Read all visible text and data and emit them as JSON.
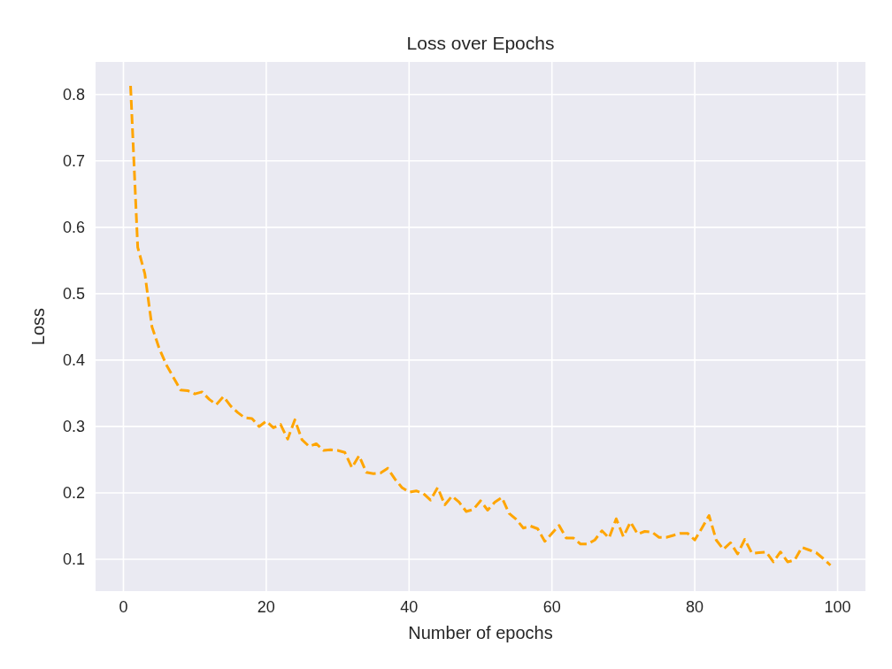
{
  "chart_data": {
    "type": "line",
    "title": "Loss over Epochs",
    "xlabel": "Number of epochs",
    "ylabel": "Loss",
    "x": [
      1,
      2,
      3,
      4,
      5,
      6,
      7,
      8,
      9,
      10,
      11,
      12,
      13,
      14,
      15,
      16,
      17,
      18,
      19,
      20,
      21,
      22,
      23,
      24,
      25,
      26,
      27,
      28,
      29,
      30,
      31,
      32,
      33,
      34,
      35,
      36,
      37,
      38,
      39,
      40,
      41,
      42,
      43,
      44,
      45,
      46,
      47,
      48,
      49,
      50,
      51,
      52,
      53,
      54,
      55,
      56,
      57,
      58,
      59,
      60,
      61,
      62,
      63,
      64,
      65,
      66,
      67,
      68,
      69,
      70,
      71,
      72,
      73,
      74,
      75,
      76,
      77,
      78,
      79,
      80,
      81,
      82,
      83,
      84,
      85,
      86,
      87,
      88,
      89,
      90,
      91,
      92,
      93,
      94,
      95,
      96,
      97,
      98,
      99
    ],
    "series": [
      {
        "color": "#ffa500",
        "values": [
          0.813,
          0.57,
          0.53,
          0.45,
          0.418,
          0.393,
          0.374,
          0.355,
          0.354,
          0.349,
          0.352,
          0.341,
          0.333,
          0.345,
          0.331,
          0.321,
          0.313,
          0.312,
          0.3,
          0.308,
          0.298,
          0.303,
          0.281,
          0.31,
          0.28,
          0.27,
          0.274,
          0.264,
          0.265,
          0.264,
          0.261,
          0.238,
          0.256,
          0.231,
          0.229,
          0.23,
          0.237,
          0.221,
          0.208,
          0.201,
          0.203,
          0.199,
          0.189,
          0.208,
          0.182,
          0.195,
          0.186,
          0.172,
          0.175,
          0.188,
          0.174,
          0.186,
          0.193,
          0.169,
          0.16,
          0.147,
          0.15,
          0.146,
          0.127,
          0.139,
          0.151,
          0.132,
          0.132,
          0.123,
          0.123,
          0.129,
          0.143,
          0.132,
          0.161,
          0.134,
          0.156,
          0.138,
          0.142,
          0.141,
          0.133,
          0.133,
          0.136,
          0.139,
          0.139,
          0.129,
          0.147,
          0.166,
          0.129,
          0.115,
          0.125,
          0.108,
          0.13,
          0.109,
          0.11,
          0.111,
          0.096,
          0.111,
          0.096,
          0.099,
          0.118,
          0.114,
          0.11,
          0.101,
          0.091
        ]
      }
    ],
    "xlim": [
      -3.9,
      103.9
    ],
    "xticks": [
      0,
      20,
      40,
      60,
      80,
      100
    ],
    "ylim": [
      0.052,
      0.849
    ],
    "yticks": [
      0.1,
      0.2,
      0.3,
      0.4,
      0.5,
      0.6,
      0.7,
      0.8
    ],
    "grid": true,
    "line_style": "dashed",
    "marker": "none"
  }
}
